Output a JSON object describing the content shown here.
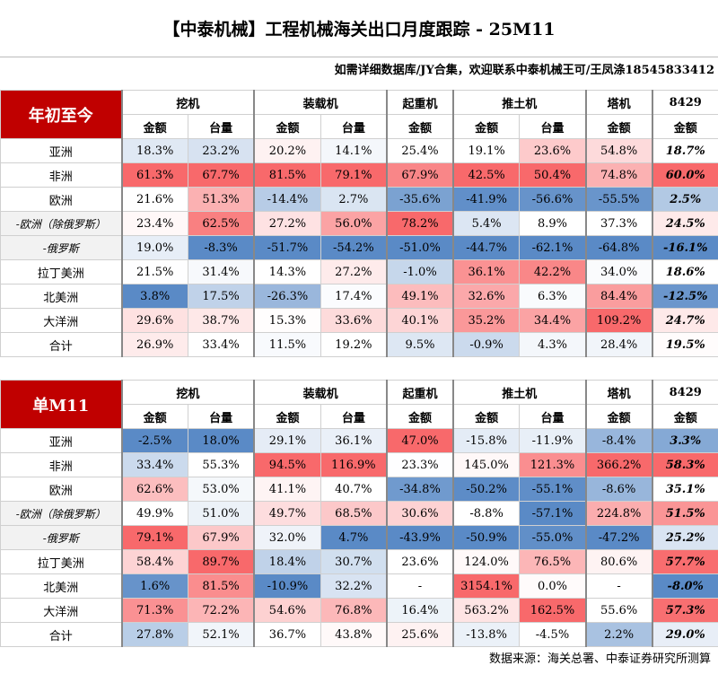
{
  "header": {
    "title": "【中泰机械】工程机械海关出口月度跟踪 - 25M11",
    "subtitle": "如需详细数据库/JY合集，欢迎联系中泰机械王可/王凤涤18545833412"
  },
  "sections": [
    {
      "label": "年初至今",
      "groups": [
        {
          "name": "挖机",
          "columns": [
            "金额",
            "台量"
          ]
        },
        {
          "name": "装载机",
          "columns": [
            "金额",
            "台量"
          ]
        },
        {
          "name": "起重机",
          "columns": [
            "金额"
          ]
        },
        {
          "name": "推土机",
          "columns": [
            "金额",
            "台量"
          ]
        },
        {
          "name": "塔机",
          "columns": [
            "金额"
          ]
        },
        {
          "name": "8429",
          "columns": [
            "金额"
          ]
        }
      ],
      "rows": [
        {
          "region": "亚洲",
          "cells": [
            "18.3%",
            "23.2%",
            "20.2%",
            "14.1%",
            "25.4%",
            "19.1%",
            "23.6%",
            "54.8%",
            "18.7%"
          ]
        },
        {
          "region": "非洲",
          "cells": [
            "61.3%",
            "67.7%",
            "81.5%",
            "79.1%",
            "67.9%",
            "42.5%",
            "50.4%",
            "74.8%",
            "60.0%"
          ]
        },
        {
          "region": "欧洲",
          "cells": [
            "21.6%",
            "51.3%",
            "-14.4%",
            "2.7%",
            "-35.6%",
            "-41.9%",
            "-56.6%",
            "-55.5%",
            "2.5%"
          ]
        },
        {
          "region": "-欧洲（除俄罗斯）",
          "cells": [
            "23.4%",
            "62.5%",
            "27.2%",
            "56.0%",
            "78.2%",
            "5.4%",
            "8.9%",
            "37.3%",
            "24.5%"
          ]
        },
        {
          "region": "-俄罗斯",
          "cells": [
            "19.0%",
            "-8.3%",
            "-51.7%",
            "-54.2%",
            "-51.0%",
            "-44.7%",
            "-62.1%",
            "-64.8%",
            "-16.1%"
          ]
        },
        {
          "region": "拉丁美洲",
          "cells": [
            "21.5%",
            "31.4%",
            "14.3%",
            "27.2%",
            "-1.0%",
            "36.1%",
            "42.2%",
            "34.0%",
            "18.6%"
          ]
        },
        {
          "region": "北美洲",
          "cells": [
            "3.8%",
            "17.5%",
            "-26.3%",
            "17.4%",
            "49.1%",
            "32.6%",
            "6.3%",
            "84.4%",
            "-12.5%"
          ]
        },
        {
          "region": "大洋洲",
          "cells": [
            "29.6%",
            "38.7%",
            "15.3%",
            "33.6%",
            "40.1%",
            "35.2%",
            "34.4%",
            "109.2%",
            "24.7%"
          ]
        },
        {
          "region": "合计",
          "cells": [
            "26.9%",
            "33.4%",
            "11.5%",
            "19.2%",
            "9.5%",
            "-0.9%",
            "4.3%",
            "28.4%",
            "19.5%"
          ]
        }
      ]
    },
    {
      "label": "单M11",
      "groups": [
        {
          "name": "挖机",
          "columns": [
            "金额",
            "台量"
          ]
        },
        {
          "name": "装载机",
          "columns": [
            "金额",
            "台量"
          ]
        },
        {
          "name": "起重机",
          "columns": [
            "金额"
          ]
        },
        {
          "name": "推土机",
          "columns": [
            "金额",
            "台量"
          ]
        },
        {
          "name": "塔机",
          "columns": [
            "金额"
          ]
        },
        {
          "name": "8429",
          "columns": [
            "金额"
          ]
        }
      ],
      "rows": [
        {
          "region": "亚洲",
          "cells": [
            "-2.5%",
            "18.0%",
            "29.1%",
            "36.1%",
            "47.0%",
            "-15.8%",
            "-11.9%",
            "-8.4%",
            "3.3%"
          ]
        },
        {
          "region": "非洲",
          "cells": [
            "33.4%",
            "55.3%",
            "94.5%",
            "116.9%",
            "23.3%",
            "145.0%",
            "121.3%",
            "366.2%",
            "58.3%"
          ]
        },
        {
          "region": "欧洲",
          "cells": [
            "62.6%",
            "53.0%",
            "41.1%",
            "40.7%",
            "-34.8%",
            "-50.2%",
            "-55.1%",
            "-8.6%",
            "35.1%"
          ]
        },
        {
          "region": "-欧洲（除俄罗斯）",
          "cells": [
            "49.9%",
            "51.0%",
            "49.7%",
            "68.5%",
            "30.6%",
            "-8.8%",
            "-57.1%",
            "224.8%",
            "51.5%"
          ]
        },
        {
          "region": "-俄罗斯",
          "cells": [
            "79.1%",
            "67.9%",
            "32.0%",
            "4.7%",
            "-43.9%",
            "-50.9%",
            "-55.0%",
            "-47.2%",
            "25.2%"
          ]
        },
        {
          "region": "拉丁美洲",
          "cells": [
            "58.4%",
            "89.7%",
            "18.4%",
            "30.7%",
            "23.6%",
            "124.0%",
            "76.5%",
            "80.6%",
            "57.7%"
          ]
        },
        {
          "region": "北美洲",
          "cells": [
            "1.6%",
            "81.5%",
            "-10.9%",
            "32.2%",
            "-",
            "3154.1%",
            "0.0%",
            "-",
            "-8.0%"
          ]
        },
        {
          "region": "大洋洲",
          "cells": [
            "71.3%",
            "72.2%",
            "54.6%",
            "76.8%",
            "16.4%",
            "563.2%",
            "162.5%",
            "55.6%",
            "57.3%"
          ]
        },
        {
          "region": "合计",
          "cells": [
            "27.8%",
            "52.1%",
            "36.7%",
            "43.8%",
            "25.6%",
            "-13.8%",
            "-4.5%",
            "2.2%",
            "29.0%"
          ]
        }
      ]
    }
  ],
  "footer": {
    "source": "数据来源：海关总署、中泰证券研究所测算"
  }
}
